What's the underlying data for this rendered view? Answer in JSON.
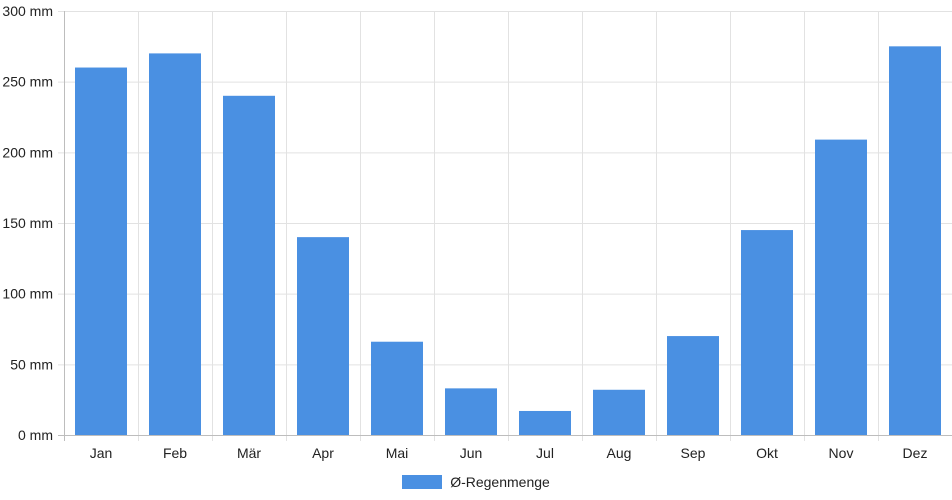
{
  "chart_data": {
    "type": "bar",
    "categories": [
      "Jan",
      "Feb",
      "Mär",
      "Apr",
      "Mai",
      "Jun",
      "Jul",
      "Aug",
      "Sep",
      "Okt",
      "Nov",
      "Dez"
    ],
    "series": [
      {
        "name": "Ø-Regenmenge",
        "values": [
          260,
          270,
          240,
          140,
          66,
          33,
          17,
          32,
          70,
          145,
          209,
          275
        ],
        "color": "#4a90e2"
      }
    ],
    "yticks": [
      0,
      50,
      100,
      150,
      200,
      250,
      300
    ],
    "ytick_unit": "mm",
    "ylim": [
      0,
      300
    ],
    "grid": true,
    "legend_position": "bottom-center",
    "title": "",
    "xlabel": "",
    "ylabel": ""
  }
}
